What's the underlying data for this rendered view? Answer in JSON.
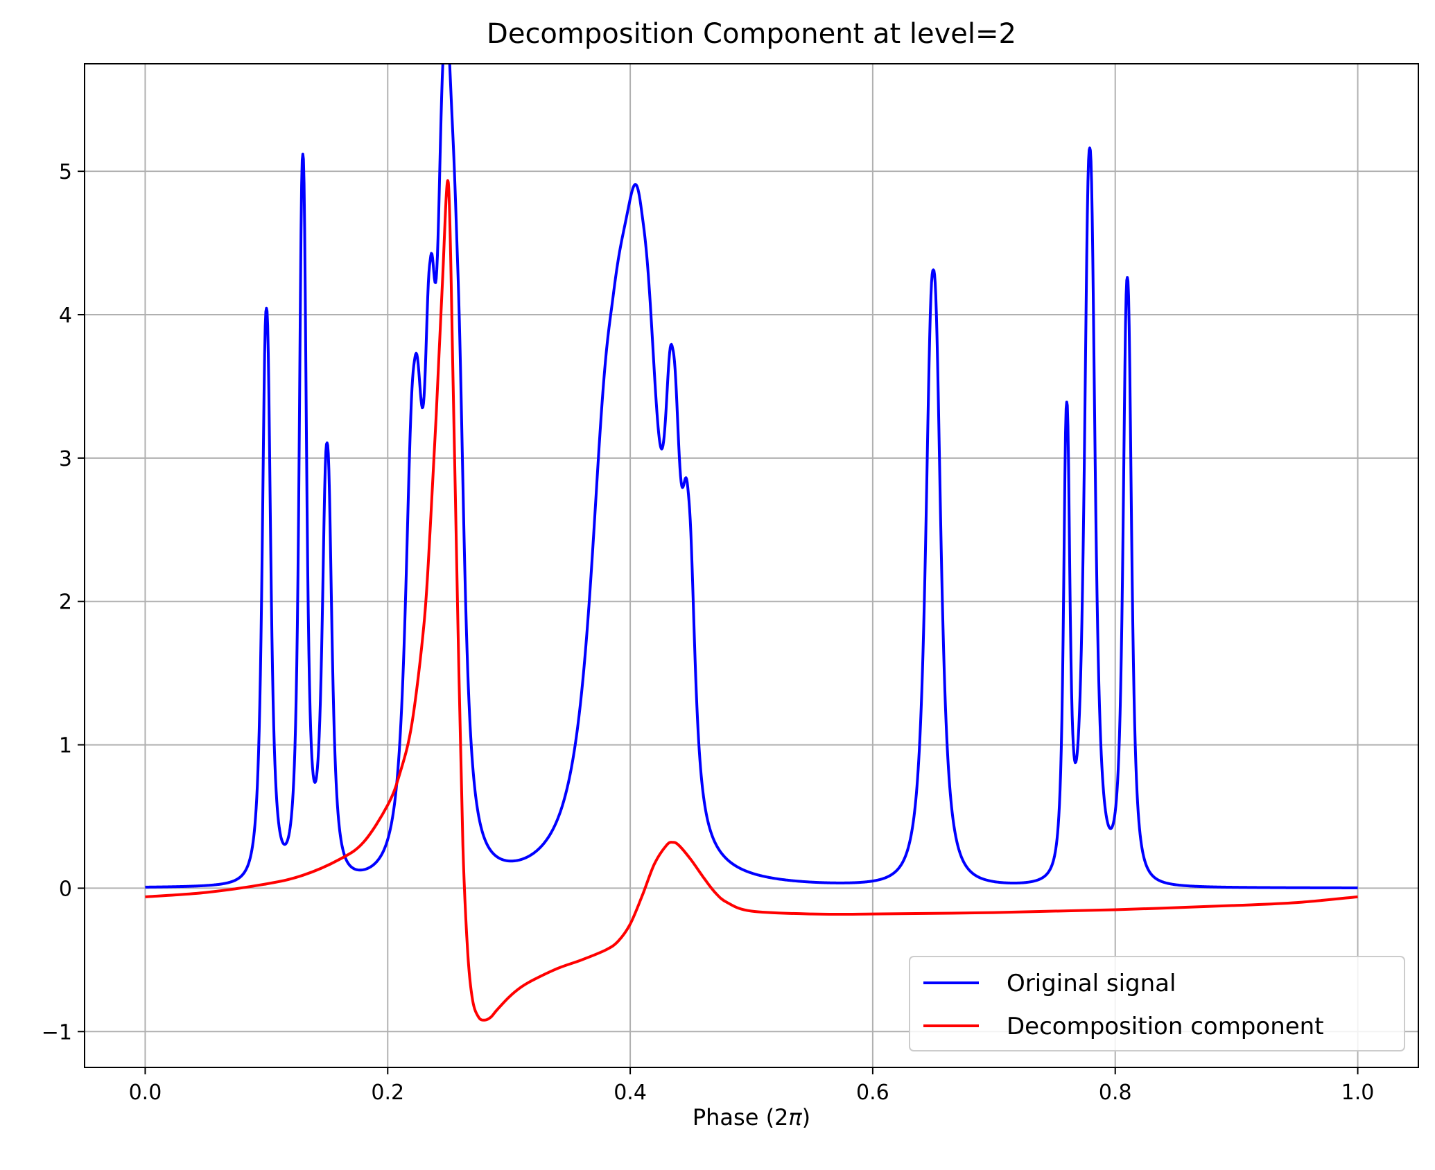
{
  "chart_data": {
    "type": "line",
    "title": "Decomposition Component at level=2",
    "xlabel_prefix": "Phase (2",
    "xlabel_symbol": "π",
    "xlabel_suffix": ")",
    "ylabel": "",
    "xlim": [
      -0.05,
      1.05
    ],
    "ylim": [
      -1.25,
      5.75
    ],
    "xticks": [
      0.0,
      0.2,
      0.4,
      0.6,
      0.8,
      1.0
    ],
    "xtick_labels": [
      "0.0",
      "0.2",
      "0.4",
      "0.6",
      "0.8",
      "1.0"
    ],
    "yticks": [
      -1,
      0,
      1,
      2,
      3,
      4,
      5
    ],
    "ytick_labels": [
      "−1",
      "0",
      "1",
      "2",
      "3",
      "4",
      "5"
    ],
    "grid": true,
    "legend_position": "bottom-right",
    "series": [
      {
        "name": "Original signal",
        "color": "#0000ff",
        "peaks": [
          {
            "center": 0.1,
            "amp": 4.0,
            "width": 0.004
          },
          {
            "center": 0.13,
            "amp": 5.0,
            "width": 0.0035
          },
          {
            "center": 0.15,
            "amp": 3.0,
            "width": 0.0045
          },
          {
            "center": 0.222,
            "amp": 3.2,
            "width": 0.008
          },
          {
            "center": 0.235,
            "amp": 2.5,
            "width": 0.005
          },
          {
            "center": 0.247,
            "amp": 4.6,
            "width": 0.007
          },
          {
            "center": 0.257,
            "amp": 3.0,
            "width": 0.007
          },
          {
            "center": 0.385,
            "amp": 3.2,
            "width": 0.02
          },
          {
            "center": 0.41,
            "amp": 3.4,
            "width": 0.016
          },
          {
            "center": 0.435,
            "amp": 2.4,
            "width": 0.007
          },
          {
            "center": 0.448,
            "amp": 1.8,
            "width": 0.006
          },
          {
            "center": 0.65,
            "amp": 4.3,
            "width": 0.007
          },
          {
            "center": 0.76,
            "amp": 3.2,
            "width": 0.003
          },
          {
            "center": 0.779,
            "amp": 5.1,
            "width": 0.005
          },
          {
            "center": 0.81,
            "amp": 4.2,
            "width": 0.004
          }
        ]
      },
      {
        "name": "Decomposition component",
        "color": "#ff0000",
        "x": [
          0.0,
          0.05,
          0.1,
          0.13,
          0.16,
          0.18,
          0.2,
          0.21,
          0.22,
          0.23,
          0.235,
          0.24,
          0.245,
          0.25,
          0.254,
          0.258,
          0.262,
          0.266,
          0.27,
          0.275,
          0.28,
          0.285,
          0.29,
          0.3,
          0.31,
          0.32,
          0.34,
          0.36,
          0.38,
          0.39,
          0.4,
          0.41,
          0.42,
          0.43,
          0.435,
          0.44,
          0.45,
          0.46,
          0.47,
          0.48,
          0.5,
          0.55,
          0.6,
          0.7,
          0.8,
          0.9,
          0.95,
          1.0
        ],
        "y": [
          -0.06,
          -0.03,
          0.03,
          0.09,
          0.2,
          0.32,
          0.58,
          0.8,
          1.15,
          1.85,
          2.5,
          3.3,
          4.2,
          4.92,
          3.5,
          1.8,
          0.3,
          -0.45,
          -0.78,
          -0.9,
          -0.92,
          -0.9,
          -0.85,
          -0.76,
          -0.69,
          -0.64,
          -0.56,
          -0.5,
          -0.43,
          -0.37,
          -0.25,
          -0.05,
          0.17,
          0.3,
          0.32,
          0.3,
          0.2,
          0.08,
          -0.03,
          -0.1,
          -0.16,
          -0.18,
          -0.18,
          -0.17,
          -0.15,
          -0.12,
          -0.1,
          -0.06
        ]
      }
    ]
  }
}
